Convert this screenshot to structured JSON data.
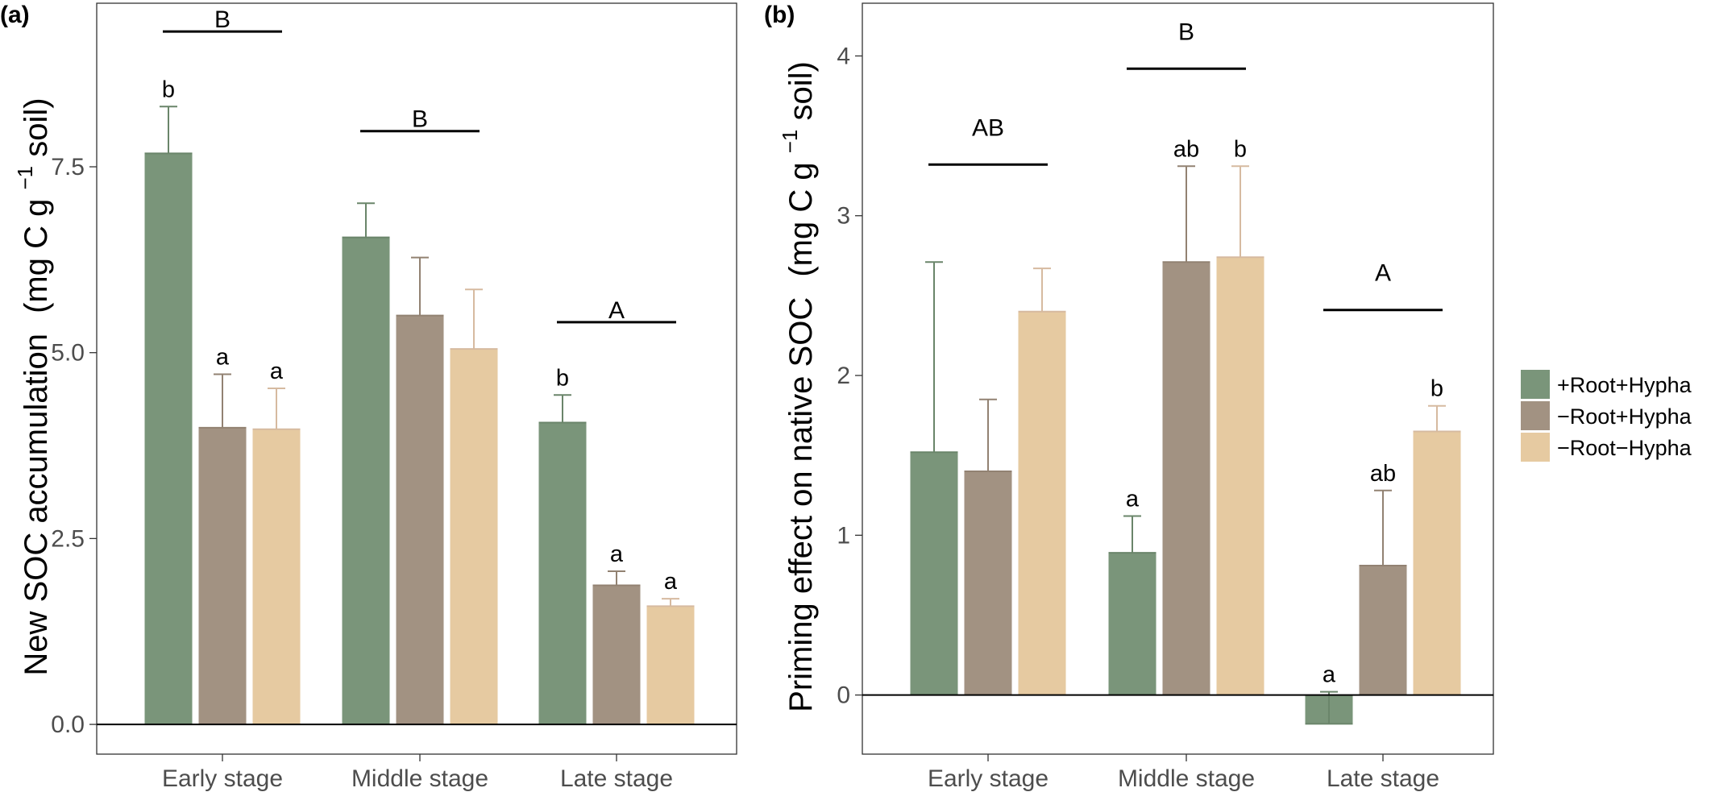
{
  "chart_data": [
    {
      "type": "bar",
      "panel_label": "(a)",
      "categories": [
        "Early stage",
        "Middle stage",
        "Late stage"
      ],
      "ylabel_main": "New SOC accumulation",
      "ylabel_unit_prefix": "(mg C g",
      "ylabel_unit_sup": "−1",
      "ylabel_unit_suffix": " soil)",
      "ylim": [
        -0.4,
        9.7
      ],
      "yticks": [
        0.0,
        2.5,
        5.0,
        7.5
      ],
      "ytick_labels": [
        "0.0",
        "2.5",
        "5.0",
        "7.5"
      ],
      "grid": false,
      "series": [
        {
          "name": "+Root+Hypha",
          "values": [
            7.68,
            6.55,
            4.06
          ],
          "errors": [
            0.63,
            0.46,
            0.37
          ]
        },
        {
          "name": "−Root+Hypha",
          "values": [
            3.99,
            5.5,
            1.87
          ],
          "errors": [
            0.72,
            0.78,
            0.19
          ]
        },
        {
          "name": "−Root−Hypha",
          "values": [
            3.97,
            5.05,
            1.59
          ],
          "errors": [
            0.55,
            0.8,
            0.1
          ]
        }
      ],
      "bar_letters": [
        [
          "b",
          "a",
          "a"
        ],
        [
          "",
          "",
          ""
        ],
        [
          "b",
          "a",
          "a"
        ]
      ],
      "group_letters": [
        {
          "text": "B",
          "line_y": 9.32
        },
        {
          "text": "B",
          "line_y": 7.98
        },
        {
          "text": "A",
          "line_y": 5.41
        }
      ]
    },
    {
      "type": "bar",
      "panel_label": "(b)",
      "categories": [
        "Early stage",
        "Middle stage",
        "Late stage"
      ],
      "ylabel_main": "Priming effect on native SOC",
      "ylabel_unit_prefix": "(mg C g",
      "ylabel_unit_sup": "−1",
      "ylabel_unit_suffix": " soil)",
      "ylim": [
        -0.37,
        4.33
      ],
      "yticks": [
        0,
        1,
        2,
        3,
        4
      ],
      "ytick_labels": [
        "0",
        "1",
        "2",
        "3",
        "4"
      ],
      "grid": false,
      "series": [
        {
          "name": "+Root+Hypha",
          "values": [
            1.52,
            0.89,
            -0.18
          ],
          "errors": [
            1.19,
            0.23,
            0.2
          ]
        },
        {
          "name": "−Root+Hypha",
          "values": [
            1.4,
            2.71,
            0.81
          ],
          "errors": [
            0.45,
            0.6,
            0.47
          ]
        },
        {
          "name": "−Root−Hypha",
          "values": [
            2.4,
            2.74,
            1.65
          ],
          "errors": [
            0.27,
            0.57,
            0.16
          ]
        }
      ],
      "bar_letters": [
        [
          "",
          "",
          ""
        ],
        [
          "a",
          "ab",
          "b"
        ],
        [
          "a",
          "ab",
          "b"
        ]
      ],
      "group_letters": [
        {
          "text": "AB",
          "line_y": 3.32
        },
        {
          "text": "B",
          "line_y": 3.92
        },
        {
          "text": "A",
          "line_y": 2.41
        }
      ]
    }
  ],
  "legend": {
    "placement": "right",
    "items": [
      {
        "label": "+Root+Hypha",
        "color": "#7a957a"
      },
      {
        "label": "−Root+Hypha",
        "color": "#a29282"
      },
      {
        "label": "−Root−Hypha",
        "color": "#e6caa1"
      }
    ]
  },
  "colors": {
    "series": [
      "#7a957a",
      "#a29282",
      "#e6caa1"
    ],
    "errorbars": [
      "#6a856a",
      "#928272",
      "#d6baa0"
    ]
  }
}
